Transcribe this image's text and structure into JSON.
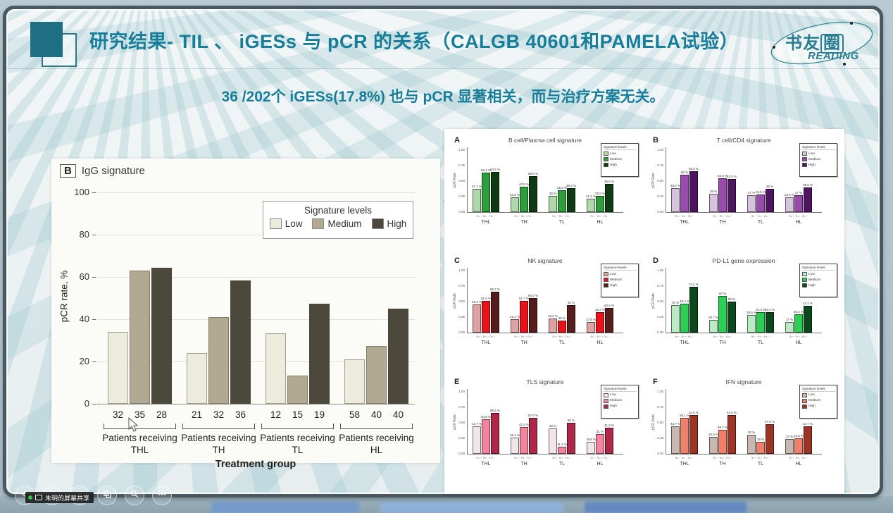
{
  "window": {
    "screen_share_badge": "朱明的屏幕共享",
    "controls": [
      {
        "name": "previous-slide"
      },
      {
        "name": "next-slide"
      },
      {
        "name": "annotate-pen"
      },
      {
        "name": "slide-thumbnails"
      },
      {
        "name": "magnifier"
      },
      {
        "name": "more-options"
      }
    ]
  },
  "slide": {
    "title": "研究结果- TIL 、 iGESs 与 pCR 的关系（CALGB 40601和PAMELA试验）",
    "subtitle": "36 /202个 iGESs(17.8%) 也与 pCR 显著相关，而与治疗方案无关。",
    "logo": {
      "zh_prefix": "书友",
      "zh_boxed": "圈",
      "en": "READING"
    }
  },
  "legend": {
    "title": "Signature levels",
    "labels": [
      "Low",
      "Medium",
      "High"
    ]
  },
  "chart_data": [
    {
      "id": "igg-main",
      "type": "bar",
      "panel_label": "B",
      "title": "IgG signature",
      "ylabel": "pCR rate, %",
      "xlabel": "Treatment group",
      "ylim": [
        0,
        100
      ],
      "yticks": [
        0,
        20,
        40,
        60,
        80,
        100
      ],
      "grid": true,
      "legend_title": "Signature levels",
      "series_names": [
        "Low",
        "Medium",
        "High"
      ],
      "colors": [
        "#edebdc",
        "#b2a993",
        "#4c493c"
      ],
      "groups": [
        {
          "label_line1": "Patients receiving",
          "label_line2": "THL",
          "n": [
            32,
            35,
            28
          ],
          "values": [
            34,
            63,
            64.5
          ]
        },
        {
          "label_line1": "Patients receiving",
          "label_line2": "TH",
          "n": [
            21,
            32,
            36
          ],
          "values": [
            24,
            41,
            58.5
          ]
        },
        {
          "label_line1": "Patients receiving",
          "label_line2": "TL",
          "n": [
            12,
            15,
            19
          ],
          "values": [
            33.5,
            13.5,
            47.5
          ]
        },
        {
          "label_line1": "Patients receiving",
          "label_line2": "HL",
          "n": [
            58,
            40,
            40
          ],
          "values": [
            21,
            27.5,
            45
          ]
        }
      ]
    },
    {
      "id": "panel-a",
      "type": "bar",
      "panel_label": "A",
      "title": "B cell/Plasma cell signature",
      "ylabel": "pCR Rate",
      "ylim": [
        0,
        100
      ],
      "ytick_labels": [
        "1.00",
        "0.75",
        "0.50",
        "0.25",
        "0.00"
      ],
      "legend_title": "Signature levels",
      "series_names": [
        "Low",
        "Medium",
        "High"
      ],
      "colors": [
        "#aed8aa",
        "#2e9e3c",
        "#0e3b12"
      ],
      "categories": [
        "THL",
        "TH",
        "TL",
        "HL"
      ],
      "series": [
        {
          "name": "Low",
          "values": [
            37.1,
            23.8,
            26.0,
            21.2
          ]
        },
        {
          "name": "Medium",
          "values": [
            63.1,
            40.5,
            35.5,
            26.5
          ]
        },
        {
          "name": "High",
          "values": [
            64.5,
            58.5,
            38.2,
            45.5
          ]
        }
      ],
      "n_row": "n=·· n=·· n=··"
    },
    {
      "id": "panel-b",
      "type": "bar",
      "panel_label": "B",
      "title": "T cell/CD4 signature",
      "ylabel": "pCR Rate",
      "ylim": [
        0,
        100
      ],
      "ytick_labels": [
        "1.00",
        "0.75",
        "0.50",
        "0.25",
        "0.00"
      ],
      "legend_title": "Signature levels",
      "series_names": [
        "Low",
        "Medium",
        "High"
      ],
      "colors": [
        "#d8c3de",
        "#9a4cae",
        "#4f1560"
      ],
      "categories": [
        "THL",
        "TH",
        "TL",
        "HL"
      ],
      "series": [
        {
          "name": "Low",
          "values": [
            38.2,
            29.0,
            27.0,
            23.5
          ]
        },
        {
          "name": "Medium",
          "values": [
            60.0,
            54.5,
            28.5,
            27.0
          ]
        },
        {
          "name": "High",
          "values": [
            65.5,
            53.5,
            38.0,
            39.5
          ]
        }
      ],
      "n_row": "n=·· n=·· n=··"
    },
    {
      "id": "panel-c",
      "type": "bar",
      "panel_label": "C",
      "title": "NK signature",
      "ylabel": "pCR Rate",
      "ylim": [
        0,
        100
      ],
      "ytick_labels": [
        "1.00",
        "0.75",
        "0.50",
        "0.25",
        "0.00"
      ],
      "legend_title": "Signature levels",
      "series_names": [
        "Low",
        "Medium",
        "High"
      ],
      "colors": [
        "#dda3a3",
        "#e91219",
        "#571c1c"
      ],
      "categories": [
        "THL",
        "TH",
        "TL",
        "HL"
      ],
      "series": [
        {
          "name": "Low",
          "values": [
            46.2,
            21.4,
            23.2,
            17.8
          ]
        },
        {
          "name": "Medium",
          "values": [
            51.5,
            51.7,
            20.0,
            33.3
          ]
        },
        {
          "name": "High",
          "values": [
            66.7,
            56.2,
            45.0,
            40.5
          ]
        }
      ],
      "n_row": "n=·· n=·· n=··"
    },
    {
      "id": "panel-d",
      "type": "bar",
      "panel_label": "D",
      "title": "PD-L1 gene expression",
      "ylabel": "pCR Rate",
      "ylim": [
        0,
        100
      ],
      "ytick_labels": [
        "1.00",
        "0.75",
        "0.50",
        "0.25",
        "0.00"
      ],
      "legend_title": "Signature levels",
      "series_names": [
        "Low",
        "Medium",
        "High"
      ],
      "colors": [
        "#b9ecc2",
        "#2bd053",
        "#0c481c"
      ],
      "categories": [
        "THL",
        "TH",
        "TL",
        "HL"
      ],
      "series": [
        {
          "name": "Low",
          "values": [
            45.0,
            20.7,
            28.6,
            17.0
          ]
        },
        {
          "name": "Medium",
          "values": [
            46.4,
            60.0,
            33.3,
            30.4
          ]
        },
        {
          "name": "High",
          "values": [
            74.1,
            50.0,
            33.3,
            43.2
          ]
        }
      ],
      "n_row": "n=·· n=·· n=··"
    },
    {
      "id": "panel-e",
      "type": "bar",
      "panel_label": "E",
      "title": "TLS signature",
      "ylabel": "pCR Rate",
      "ylim": [
        0,
        100
      ],
      "ytick_labels": [
        "1.00",
        "0.75",
        "0.50",
        "0.25",
        "0.00"
      ],
      "legend_title": "Signature levels",
      "series_names": [
        "Low",
        "Medium",
        "High"
      ],
      "colors": [
        "#f1e5e7",
        "#f2849e",
        "#ae2746"
      ],
      "categories": [
        "THL",
        "TH",
        "TL",
        "HL"
      ],
      "series": [
        {
          "name": "Low",
          "values": [
            43.7,
            26.1,
            40.0,
            18.8
          ]
        },
        {
          "name": "Medium",
          "values": [
            54.8,
            42.4,
            11.1,
            31.0
          ]
        },
        {
          "name": "High",
          "values": [
            65.5,
            57.6,
            50.0,
            41.2
          ]
        }
      ],
      "n_row": "n=·· n=·· n=··"
    },
    {
      "id": "panel-f",
      "type": "bar",
      "panel_label": "F",
      "title": "IFN signature",
      "ylabel": "pCR Rate",
      "ylim": [
        0,
        100
      ],
      "ytick_labels": [
        "1.00",
        "0.75",
        "0.50",
        "0.25",
        "0.00"
      ],
      "legend_title": "Signature levels",
      "series_names": [
        "Low",
        "Medium",
        "High"
      ],
      "colors": [
        "#c9b8b0",
        "#f0806a",
        "#9c3526"
      ],
      "categories": [
        "THL",
        "TH",
        "TL",
        "HL"
      ],
      "series": [
        {
          "name": "Low",
          "values": [
            43.7,
            26.5,
            30.0,
            23.0
          ]
        },
        {
          "name": "Medium",
          "values": [
            58.1,
            38.7,
            19.0,
            24.5
          ]
        },
        {
          "name": "High",
          "values": [
            62.5,
            62.5,
            47.5,
            43.7
          ]
        }
      ],
      "n_row": "n=·· n=·· n=··"
    }
  ]
}
